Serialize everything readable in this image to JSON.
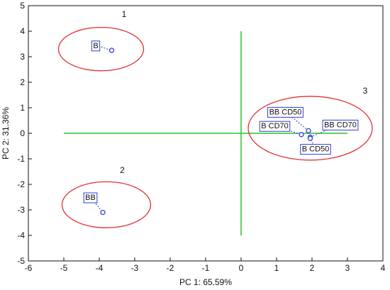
{
  "chart_data": {
    "type": "scatter",
    "xlabel": "PC 1: 65.59%",
    "ylabel": "PC 2: 31.36%",
    "xlim": [
      -6,
      4
    ],
    "ylim": [
      -5,
      5
    ],
    "xticks": [
      "-6",
      "-5",
      "-4",
      "-3",
      "-2",
      "-1",
      "0",
      "1",
      "2",
      "3",
      "4"
    ],
    "yticks": [
      "-5",
      "-4",
      "-3",
      "-2",
      "-1",
      "0",
      "1",
      "2",
      "3",
      "4",
      "5"
    ],
    "grid": false,
    "points": [
      {
        "label": "B",
        "x": -3.65,
        "y": 3.25,
        "label_x": -4.1,
        "label_y": 3.45
      },
      {
        "label": "BB",
        "x": -3.9,
        "y": -3.1,
        "label_x": -4.25,
        "label_y": -2.5
      },
      {
        "label": "BB CD50",
        "x": 1.9,
        "y": 0.1,
        "label_x": 1.25,
        "label_y": 0.85
      },
      {
        "label": "B CD70",
        "x": 1.7,
        "y": -0.05,
        "label_x": 0.95,
        "label_y": 0.3
      },
      {
        "label": "BB CD70",
        "x": 1.95,
        "y": -0.15,
        "label_x": 2.8,
        "label_y": 0.35
      },
      {
        "label": "B CD50",
        "x": 1.95,
        "y": -0.2,
        "label_x": 2.1,
        "label_y": -0.6
      }
    ],
    "reference_lines": {
      "horizontal": {
        "y": 0,
        "x_from": -5,
        "x_to": 3
      },
      "vertical": {
        "x": 0,
        "y_from": -4,
        "y_to": 4
      }
    },
    "groups": [
      {
        "label": "1",
        "cx": -3.95,
        "cy": 3.3,
        "rx": 1.2,
        "ry": 0.85,
        "label_x": -3.3,
        "label_y": 4.55
      },
      {
        "label": "2",
        "cx": -3.8,
        "cy": -2.8,
        "rx": 1.25,
        "ry": 0.9,
        "label_x": -3.35,
        "label_y": -1.55
      },
      {
        "label": "3",
        "cx": 1.95,
        "cy": 0.2,
        "rx": 1.75,
        "ry": 1.25,
        "label_x": 3.5,
        "label_y": 1.55
      }
    ],
    "colors": {
      "point": "#2f3fd6",
      "label_box": "#2f3fd6",
      "ellipse": "#e03030",
      "reference_line": "#2fbf2f",
      "axis": "#111111"
    }
  }
}
